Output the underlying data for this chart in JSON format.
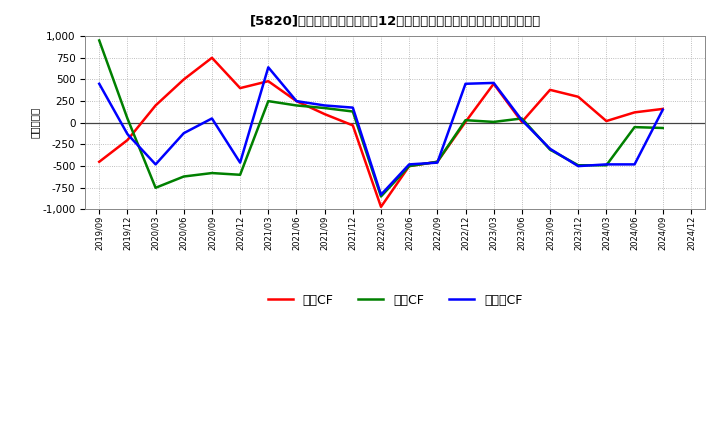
{
  "title": "[5820]  キャッシュフローの12か月移動合計の対前年同期増減額の推移",
  "title_prefix": "[5820]　キャッシュフローの12か月移動合計の対前年同期増減額の推移",
  "ylabel": "（百万円）",
  "legend_eigyo": "営業CF",
  "legend_toshi": "投資CF",
  "legend_free": "フリーCF",
  "background_color": "#ffffff",
  "plot_bg_color": "#ffffff",
  "grid_color": "#aaaaaa",
  "x_labels": [
    "2019/09",
    "2019/12",
    "2020/03",
    "2020/06",
    "2020/09",
    "2020/12",
    "2021/03",
    "2021/06",
    "2021/09",
    "2021/12",
    "2022/03",
    "2022/06",
    "2022/09",
    "2022/12",
    "2023/03",
    "2023/06",
    "2023/09",
    "2023/12",
    "2024/03",
    "2024/06",
    "2024/09",
    "2024/12"
  ],
  "eigyo_cf": [
    -450,
    -200,
    200,
    500,
    750,
    400,
    480,
    250,
    100,
    -30,
    -970,
    -500,
    -450,
    10,
    450,
    10,
    380,
    300,
    20,
    120,
    160,
    null
  ],
  "toshi_cf": [
    950,
    50,
    -750,
    -620,
    -580,
    -600,
    250,
    200,
    170,
    130,
    -850,
    -500,
    -450,
    30,
    10,
    50,
    -310,
    -490,
    -490,
    -50,
    -60,
    null
  ],
  "free_cf": [
    450,
    -130,
    -480,
    -120,
    50,
    -460,
    640,
    250,
    200,
    175,
    -830,
    -480,
    -460,
    450,
    460,
    30,
    -300,
    -500,
    -480,
    -480,
    150,
    null
  ],
  "eigyo_color": "#ff0000",
  "toshi_color": "#008000",
  "free_color": "#0000ff",
  "ylim": [
    -1000,
    1000
  ],
  "yticks": [
    -1000,
    -750,
    -500,
    -250,
    0,
    250,
    500,
    750,
    1000
  ]
}
